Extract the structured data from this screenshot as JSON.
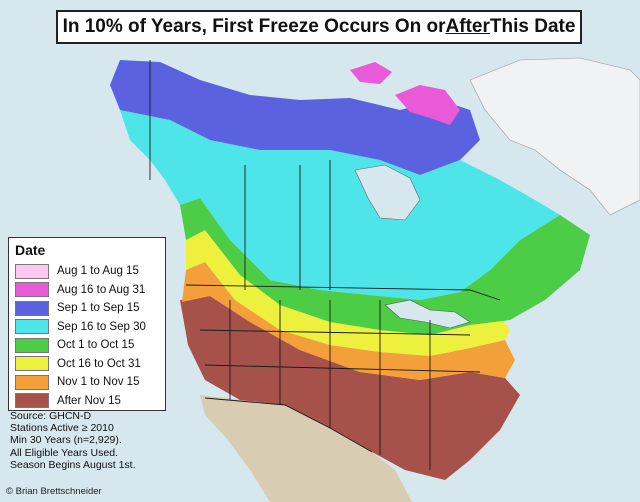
{
  "title": {
    "part1": "In 10% of Years, First Freeze Occurs On or ",
    "emphasis": "After",
    "part2": " This Date"
  },
  "legend": {
    "heading": "Date",
    "items": [
      {
        "label": "Aug 1 to Aug 15",
        "color": "#ffc6f1"
      },
      {
        "label": "Aug 16 to Aug 31",
        "color": "#e85ad8"
      },
      {
        "label": "Sep 1 to Sep 15",
        "color": "#5a62e0"
      },
      {
        "label": "Sep 16 to Sep 30",
        "color": "#4ee5e8"
      },
      {
        "label": "Oct 1 to Oct 15",
        "color": "#4dcc46"
      },
      {
        "label": "Oct 16 to Oct 31",
        "color": "#eef03e"
      },
      {
        "label": "Nov 1 to Nov 15",
        "color": "#f3a03a"
      },
      {
        "label": "After Nov 15",
        "color": "#a6524a"
      }
    ]
  },
  "notes": [
    "Source: GHCN-D",
    "Stations Active ≥ 2010",
    "Min 30 Years (n=2,929).",
    "All Eligible Years Used.",
    "Season Begins August 1st."
  ],
  "credit": "© Brian Brettschneider",
  "map_colors": {
    "ocean": "#d6e7ee",
    "land_outside": "#d7ccb4",
    "ice": "#f2f4f5",
    "border": "#1a1a1a"
  }
}
